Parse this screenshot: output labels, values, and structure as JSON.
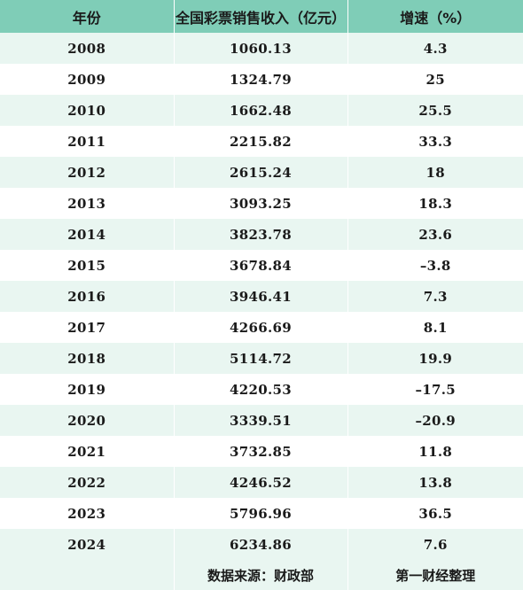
{
  "table": {
    "headers": [
      "年份",
      "全国彩票销售收入（亿元）",
      "增速（%）"
    ],
    "rows": [
      [
        "2008",
        "1060.13",
        "4.3"
      ],
      [
        "2009",
        "1324.79",
        "25"
      ],
      [
        "2010",
        "1662.48",
        "25.5"
      ],
      [
        "2011",
        "2215.82",
        "33.3"
      ],
      [
        "2012",
        "2615.24",
        "18"
      ],
      [
        "2013",
        "3093.25",
        "18.3"
      ],
      [
        "2014",
        "3823.78",
        "23.6"
      ],
      [
        "2015",
        "3678.84",
        "–3.8"
      ],
      [
        "2016",
        "3946.41",
        "7.3"
      ],
      [
        "2017",
        "4266.69",
        "8.1"
      ],
      [
        "2018",
        "5114.72",
        "19.9"
      ],
      [
        "2019",
        "4220.53",
        "–17.5"
      ],
      [
        "2020",
        "3339.51",
        "–20.9"
      ],
      [
        "2021",
        "3732.85",
        "11.8"
      ],
      [
        "2022",
        "4246.52",
        "13.8"
      ],
      [
        "2023",
        "5796.96",
        "36.5"
      ],
      [
        "2024",
        "6234.86",
        "7.6"
      ]
    ],
    "footer": [
      "",
      "数据来源：财政部",
      "第一财经整理"
    ]
  },
  "colors": {
    "header_bg": "#7fcdb7",
    "stripe_bg": "#e9f6f1",
    "row_bg": "#ffffff"
  }
}
